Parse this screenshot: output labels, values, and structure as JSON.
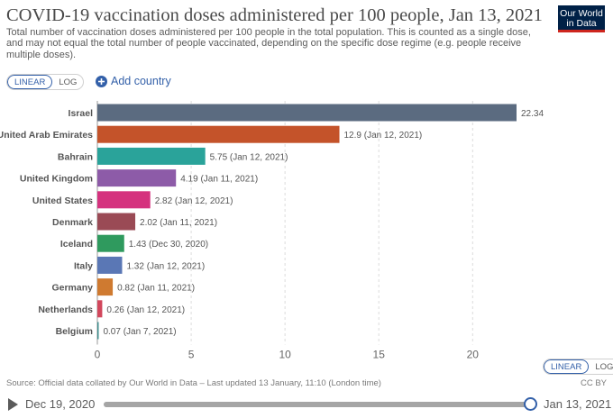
{
  "header": {
    "title": "COVID-19 vaccination doses administered per 100 people, Jan 13, 2021",
    "subtitle": "Total number of vaccination doses administered per 100 people in the total population. This is counted as a single dose, and may not equal the total number of people vaccinated, depending on the specific dose regime (e.g. people receive multiple doses).",
    "logo_line1": "Our World",
    "logo_line2": "in Data"
  },
  "controls": {
    "linear_label": "LINEAR",
    "log_label": "LOG",
    "add_country_label": "Add country"
  },
  "footer": {
    "source": "Source: Official data collated by Our World in Data – Last updated 13 January, 11:10 (London time)",
    "license": "CC BY"
  },
  "timeline": {
    "start": "Dec 19, 2020",
    "end": "Jan 13, 2021"
  },
  "chart_data": {
    "type": "bar",
    "orientation": "horizontal",
    "title": "COVID-19 vaccination doses administered per 100 people, Jan 13, 2021",
    "xlim": [
      0,
      22.34
    ],
    "xticks": [
      0,
      5,
      10,
      15,
      20
    ],
    "grid": "vertical dashed",
    "bars": [
      {
        "category": "Israel",
        "value": 22.34,
        "label": "22.34",
        "color": "#5b6b80"
      },
      {
        "category": "United Arab Emirates",
        "value": 12.9,
        "label": "12.9 (Jan 12, 2021)",
        "color": "#c4532a"
      },
      {
        "category": "Bahrain",
        "value": 5.75,
        "label": "5.75 (Jan 12, 2021)",
        "color": "#2aa39a"
      },
      {
        "category": "United Kingdom",
        "value": 4.19,
        "label": "4.19 (Jan 11, 2021)",
        "color": "#8d5ba8"
      },
      {
        "category": "United States",
        "value": 2.82,
        "label": "2.82 (Jan 12, 2021)",
        "color": "#d5327e"
      },
      {
        "category": "Denmark",
        "value": 2.02,
        "label": "2.02 (Jan 11, 2021)",
        "color": "#9a4a55"
      },
      {
        "category": "Iceland",
        "value": 1.43,
        "label": "1.43 (Dec 30, 2020)",
        "color": "#2f9a5e"
      },
      {
        "category": "Italy",
        "value": 1.32,
        "label": "1.32 (Jan 12, 2021)",
        "color": "#5a77b5"
      },
      {
        "category": "Germany",
        "value": 0.82,
        "label": "0.82 (Jan 11, 2021)",
        "color": "#cf7a30"
      },
      {
        "category": "Netherlands",
        "value": 0.26,
        "label": "0.26 (Jan 12, 2021)",
        "color": "#d2475c"
      },
      {
        "category": "Belgium",
        "value": 0.07,
        "label": "0.07 (Jan 7, 2021)",
        "color": "#3a8c8c"
      }
    ]
  }
}
